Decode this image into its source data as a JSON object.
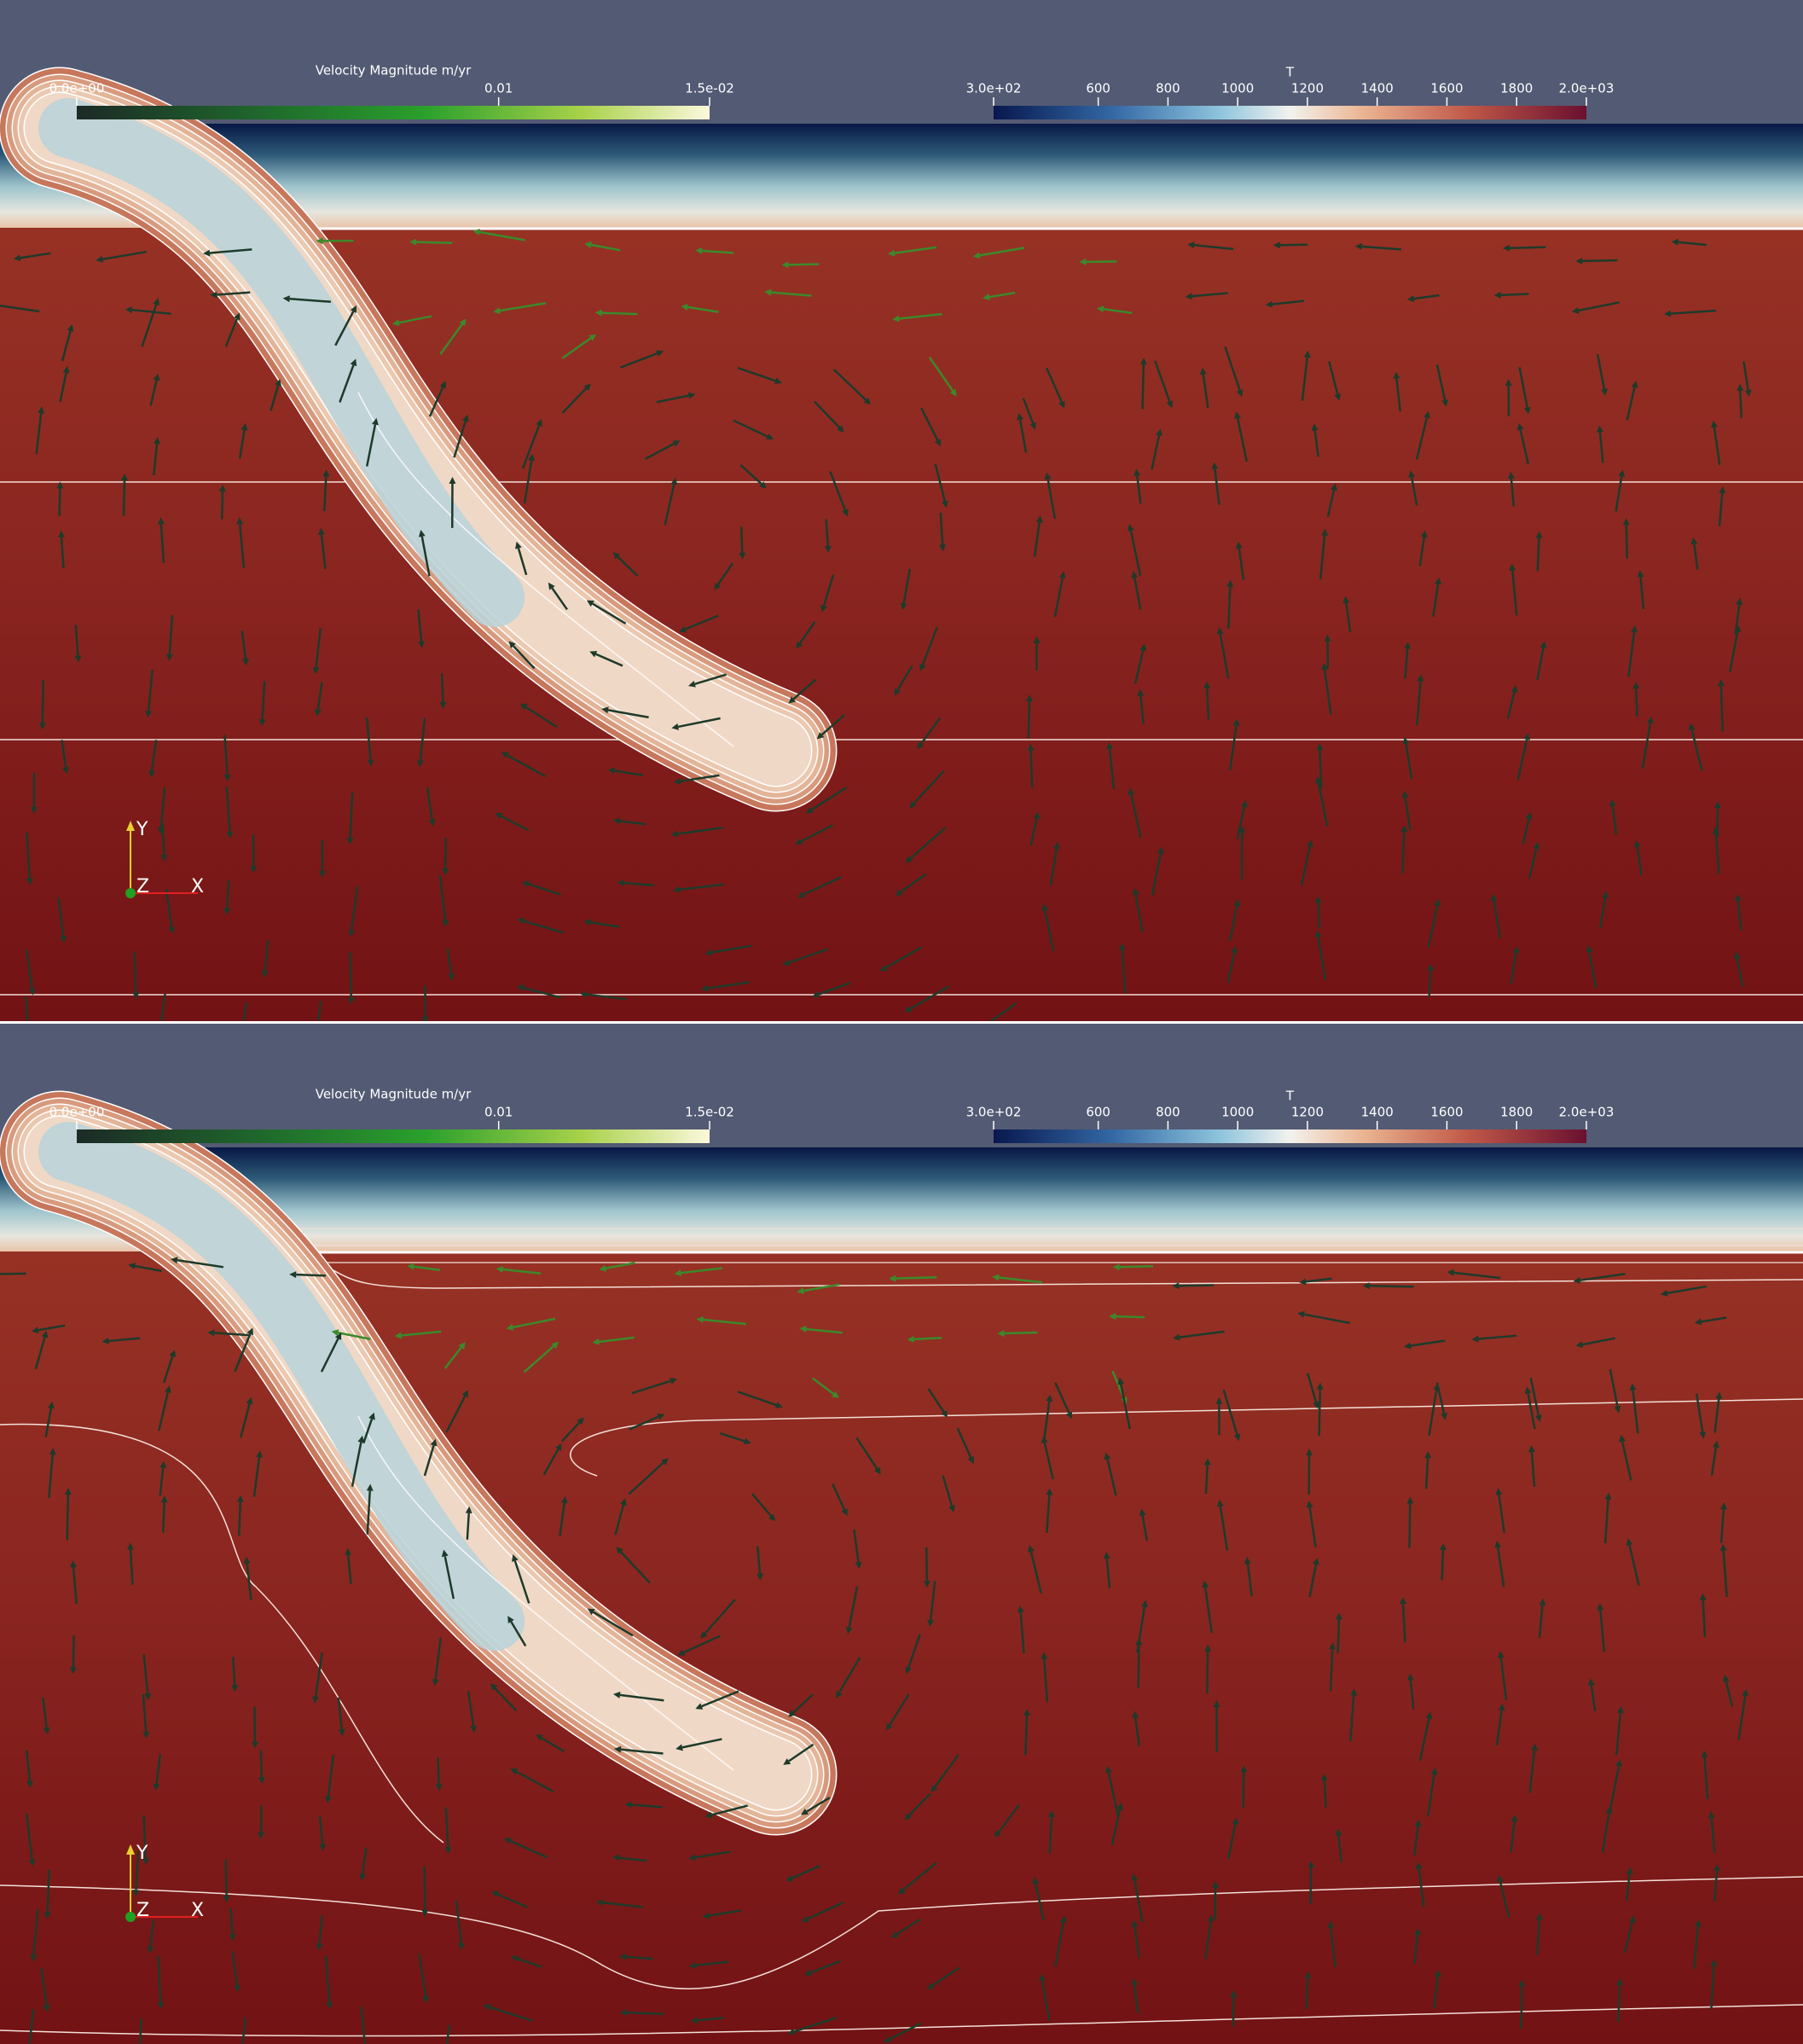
{
  "panels": [
    {
      "velocity_colorbar": {
        "title": "Velocity Magnitude m/yr",
        "ticks": [
          {
            "value": 0,
            "label": "0.0e+00"
          },
          0.01,
          {
            "value": 0.015,
            "label": "1.5e-02"
          }
        ]
      },
      "temperature_colorbar": {
        "title": "T",
        "ticks": [
          {
            "value": 300,
            "label": "3.0e+02"
          },
          600,
          800,
          1000,
          1200,
          1400,
          1600,
          1800,
          {
            "value": 2000,
            "label": "2.0e+03"
          }
        ]
      },
      "axes": {
        "y": "Y",
        "z": "Z",
        "x": "X"
      }
    },
    {
      "velocity_colorbar": {
        "title": "Velocity Magnitude m/yr",
        "ticks": [
          {
            "value": 0,
            "label": "0.0e+00"
          },
          0.01,
          {
            "value": 0.015,
            "label": "1.5e-02"
          }
        ]
      },
      "temperature_colorbar": {
        "title": "T",
        "ticks": [
          {
            "value": 300,
            "label": "3.0e+02"
          },
          600,
          800,
          1000,
          1200,
          1400,
          1600,
          1800,
          {
            "value": 2000,
            "label": "2.0e+03"
          }
        ]
      },
      "axes": {
        "y": "Y",
        "z": "Z",
        "x": "X"
      }
    }
  ]
}
